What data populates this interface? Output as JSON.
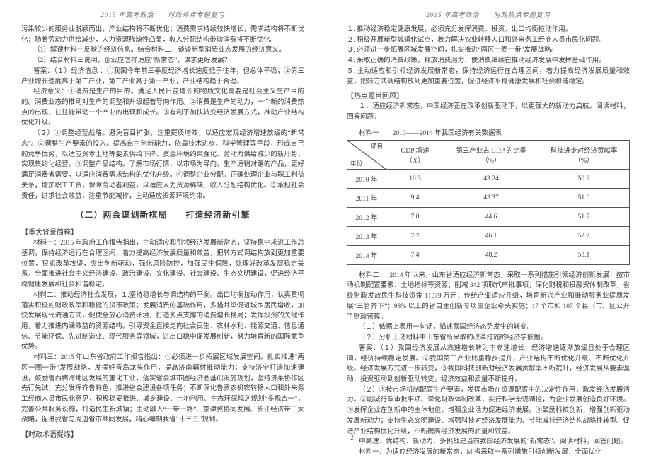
{
  "running_head": "2015 年高考政治　　时政热点专题复习",
  "page_number": "- 2 -",
  "left": {
    "para1": "污染较少的服务业脱颖而出，产业结构将不断优化；消费需求持续较快增长，需求结构将不断优化；随着劳动力供给减少，人力资源稀缺性凸显，收入分配结构带动消费将不断优化。",
    "q1": "（1）解读材料一反映的经济信息。结合材料二，谈谈新型消费业态发展的经济意义。",
    "q2": "（2）结合材料三说明，企业应怎样适应“新常态”，谋求更好发展？",
    "ans_label": "答案：（１）经济信息 ：①我国今年前三季度经济增长速度低于往年，但总体平稳；②第三产业增长速度高于第二产业，第二产业高于第一产业，产业结构趋于合理。",
    "para2": "经济意义：①消费是生产的目的。满足人民日益增长的物质文化需要是社会主义生产目的的。消费业态的推动对生产的调整和升级起着导向作用。②消费是生产的动力，一个新的消费热点的出现，往往能带动一个产业的出现和成长。③有利于加快转变经济发展方式，推动产业结构优化升级。",
    "para3": "（２）①调整经营战略。避免盲目扩张，注重提质增效，以适应宏观经济增速放缓的“新常态”。②调整生产要素的投入。提高自主创新能力，依靠技术进步、科学管理等手段，形成自己的竞争优势，以适应资本土地等要素供给下降、资源环境约束强化、劳动力供给减少的新形势，实现集约化经营。③调整产品结构。了解市场行情，以市场为导向，生产适销对路的产品，更好满足消费者需要，以适应消费需求结构的优化升级。④调整企业分配。正确处理企业与职工利益关系，增加职工工资，保障劳动者利益，以适应人力资源稀缺、收入分配结构优化。⑤承担社会责任，讲求社会效益，注重节能减排，主动适应资源环境约束。",
    "section_title": "（二）两会谋划新棋局　　打造经济新引擎",
    "bg_label": "【重大背景简释】",
    "m1": "材料一：2015 年政府工作报告指出，主动适应和引领经济发展新常态，坚持稳中求进工作总基调，保持经济运行在合理区间，着力提高经济发展质量和效益，把转方式调结构放到更加重要位置，狠抓改革攻坚，突出创新驱动，强化风险防控，加强民生保障，处理好改革发展稳定关系，全面推进社会主义经济建设、政治建设、文化建设、社会建设、生态文明建设，促进经济平稳健康发展和社会和谐稳定。",
    "m2": "材料二：推动经济社会发展，１.坚持稳增长与调结构的平衡。出口均衡拉动作用，认真贯彻落实积极的财政政策和稳健的货币政策；发展消费的基础作用，多措并举促进城乡居民增收，加快发展现代流通方式，促使全放心消费环境，打造多点支撑的消费增长格局；发挥投资的关键作用，着力推进内涵效益的资源结构。引导资金直接走向社会民生、农林水利、能源交通、信息通信、节能环保、先进制造业、现代服务等领域，进出口稳中促发展创新，努力培育新的国际竞争优势。",
    "m3": "材料三：2015 年山东省政府工作报告指出：①必须进一步拓展区域发展空间。扎实推进“两区一圈一带”发展战略，发挥好青岛龙头作用，提高济南辐射推动能力；支持济宁打造加速建设，鼓励鲁西腾海地区发展的重化工业，落实省会城市圈经济圈基础设施规划，坚持济莱协作区先行先试，充分发挥齐鲁特色，推进省会建设各项任务；不断深化鲁资农机农转移人口和外来务工经商人员市民化意见，积极稳妥推进、城乡建设、土地利用、生态环保规划规划“多规合一”，完善公共服务设施，打造民生新城镇；主动融入“一带一路”、京津冀协同发展、长江经济带三大战略，促进我省与周边省市共同发展，精心编制我省“十三五”规划。",
    "tip_label": "【时政术语提炼】"
  },
  "right": {
    "list1": "１. 推动经济稳定健康发展，必须充分发挥消费、投资、出口均衡拉动作用。",
    "list2": "２. 积极开展新型城镇化试点，着力解决农业转移人口和外来务工经商人员市民化问题。",
    "list3": "３. 必须进一步拓展区域发展空间，扎实推进“两区一圈一带”发展战略。",
    "list4": "４. 采取正确的消费政策，释放消费潜力，使消费继续在推动经济发展中发挥基础作用。",
    "list5": "５. 主动适应和引领经济发展新常态，保持经济运行在合理区间，着力提高经济发展质量和效益，把转方式调结构放到更加重要位置，促进经济平稳健康发展和社会和谐稳定。",
    "hot_label": "【热点题目回顾】",
    "hot_q": "１．适应经济新常态，中国经济正在改革创新驱动下，以更强大的新动力启航。阅读材料，回答问题。",
    "table_caption": "材料一　　2010——2014 年我国经济有关数据表",
    "table": {
      "diag_top": "项目",
      "diag_bottom": "年份",
      "headers": [
        "GDP 增速（%）",
        "第三产业占 GDP 的比重（%）",
        "科技进步对经济贡献率（%）"
      ],
      "rows": [
        [
          "2010 年",
          "10.3",
          "43.24",
          "50.9"
        ],
        [
          "2011 年",
          "9.4",
          "43.37",
          "51.0"
        ],
        [
          "2012 年",
          "7.8",
          "44.6",
          "51.7"
        ],
        [
          "2013 年",
          "7.7",
          "46.1",
          "52.2"
        ],
        [
          "2014 年",
          "7.4",
          "48.2",
          "53.1"
        ]
      ],
      "col_widths": [
        "60px",
        "80px",
        "120px",
        "140px"
      ]
    },
    "m2": "材料二：　2014 年以来，山东省适应经济新常态，采取一系列措施引领经济创新发展：按市场机制配置要素、土地指标等资源；削减 342 项取代审批事项；深化财税和投融资体制改革，省级财政发放民生科技资金 11579 万元；传统产业适应升级，培育新兴产业和推动服务业提质发展“三管齐下”；98% 以上的省自主创新专项由企业牵头实施；17 个市和 107 个县（市）区公开了财政预算。",
    "sub_q1": "（１）依据上表用一句话，描述我国经济态势发生的转变。",
    "sub_q2": "（２）分析上述材料中山东省所采取的改革措施的经济学依据。",
    "ans2": "答案：（１）我国经济发展从高速增长转为中高速增长，经济增速逐渐放缓且处于合理区间，经济持续稳定发展。②我国第三产业比重稳步提升，产业结构不断优化升级、不断优化升级。经济发展方式进一步转变，③我国科技创新对经济发展贡献率不断提升，经济发展从要素驱动、投资驱动到创新驱动转变，经济效益和质量不断提升。",
    "ans3": "（２）①按市场机制配置生产要素，发挥市场在资源配置中的决定性作用，激发经济发展活力。②削减行政审批事项、深化财政体制改革，实行科学宏观调控，为企业发展创造良好环境。③发挥企业在创新中的主体地位，增强企业活力促进经济发展。③鼓励科技创新、增强创新驱动发展新动力；支持生态文明建设、增强科技对经济发展能力、节能减排经济结构战略性转型。促进产业结构优化升级，不断提高经济发展的质量和效益。",
    "para_last": "中高速、优结构、新动力、多挑战是当前我国经济发展的“新常态”。阅读材料，回答问题。",
    "m1_last": "材料一：为适应经济发展的新常态，M 省采取一系列措施引领创新发展：全面优化"
  }
}
